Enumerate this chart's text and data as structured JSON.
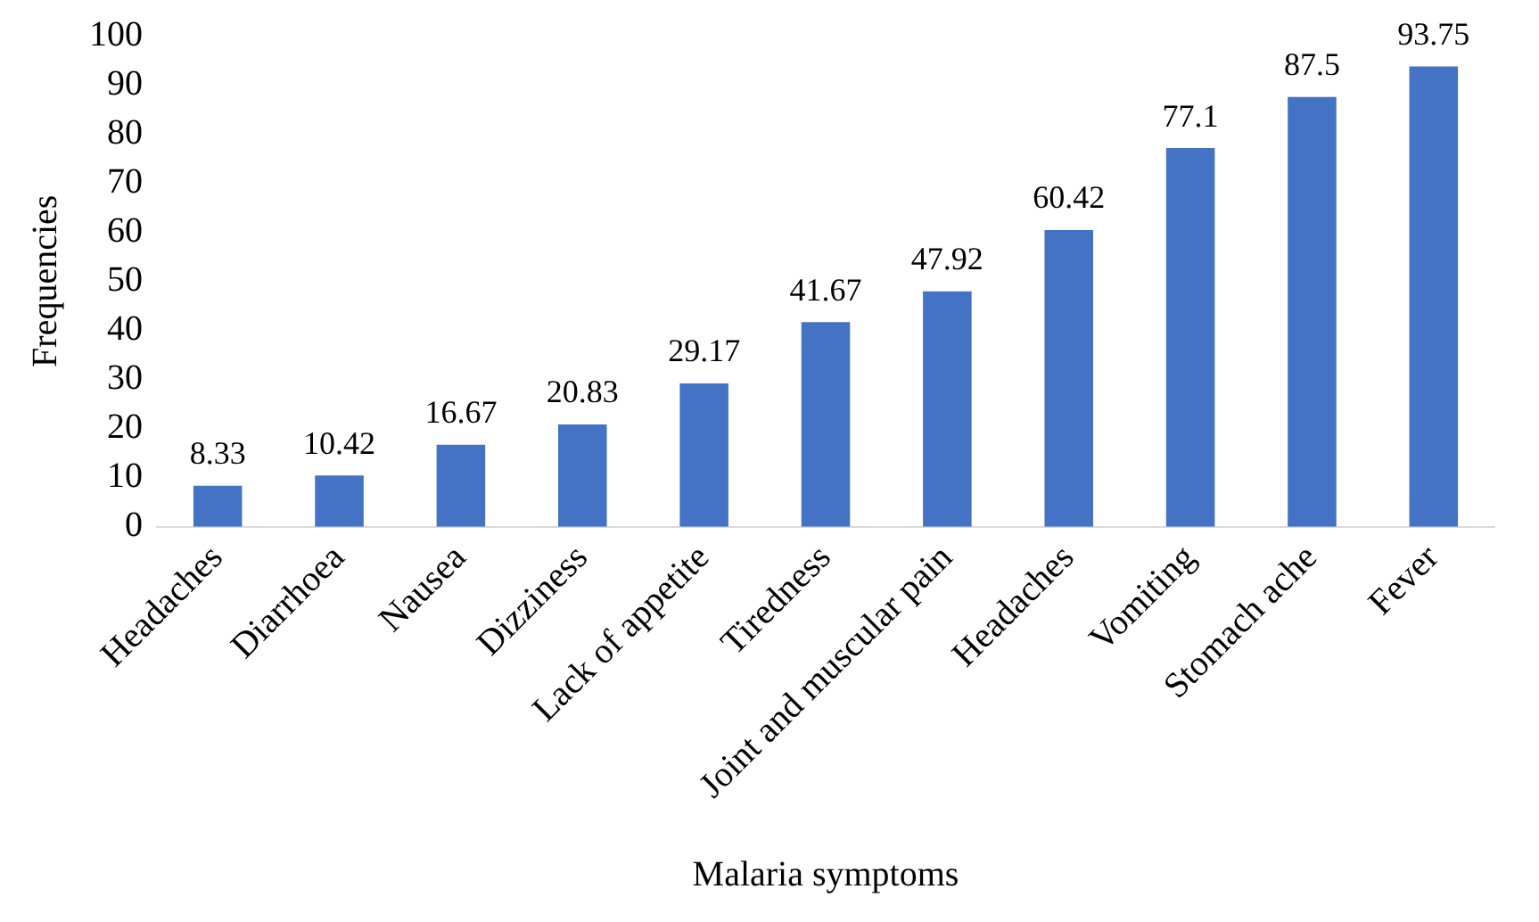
{
  "chart_data": {
    "type": "bar",
    "xlabel": "Malaria symptoms",
    "ylabel": "Frequencies",
    "categories": [
      "Headaches",
      "Diarrhoea",
      "Nausea",
      "Dizziness",
      "Lack of appetite",
      "Tiredness",
      "Joint and muscular pain",
      "Headaches",
      "Vomiting",
      "Stomach ache",
      "Fever"
    ],
    "values": [
      8.33,
      10.42,
      16.67,
      20.83,
      29.17,
      41.67,
      47.92,
      60.42,
      77.1,
      87.5,
      93.75
    ],
    "color": "#4472c4",
    "ylim": [
      0,
      100
    ],
    "yticks": [
      0,
      10,
      20,
      30,
      40,
      50,
      60,
      70,
      80,
      90,
      100
    ],
    "grid": false,
    "legend": false,
    "data_labels": true
  }
}
